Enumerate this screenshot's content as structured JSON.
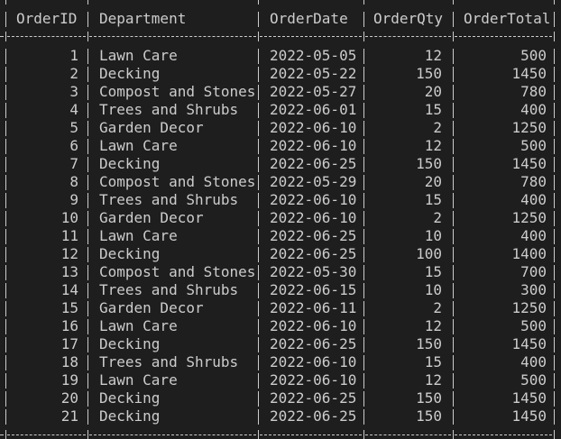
{
  "table": {
    "columns": [
      "OrderID",
      "Department",
      "OrderDate",
      "OrderQty",
      "OrderTotal"
    ],
    "rows": [
      [
        "1",
        "Lawn Care",
        "2022-05-05",
        "12",
        "500"
      ],
      [
        "2",
        "Decking",
        "2022-05-22",
        "150",
        "1450"
      ],
      [
        "3",
        "Compost and Stones",
        "2022-05-27",
        "20",
        "780"
      ],
      [
        "4",
        "Trees and Shrubs",
        "2022-06-01",
        "15",
        "400"
      ],
      [
        "5",
        "Garden Decor",
        "2022-06-10",
        "2",
        "1250"
      ],
      [
        "6",
        "Lawn Care",
        "2022-06-10",
        "12",
        "500"
      ],
      [
        "7",
        "Decking",
        "2022-06-25",
        "150",
        "1450"
      ],
      [
        "8",
        "Compost and Stones",
        "2022-05-29",
        "20",
        "780"
      ],
      [
        "9",
        "Trees and Shrubs",
        "2022-06-10",
        "15",
        "400"
      ],
      [
        "10",
        "Garden Decor",
        "2022-06-10",
        "2",
        "1250"
      ],
      [
        "11",
        "Lawn Care",
        "2022-06-25",
        "10",
        "400"
      ],
      [
        "12",
        "Decking",
        "2022-06-25",
        "100",
        "1400"
      ],
      [
        "13",
        "Compost and Stones",
        "2022-05-30",
        "15",
        "700"
      ],
      [
        "14",
        "Trees and Shrubs",
        "2022-06-15",
        "10",
        "300"
      ],
      [
        "15",
        "Garden Decor",
        "2022-06-11",
        "2",
        "1250"
      ],
      [
        "16",
        "Lawn Care",
        "2022-06-10",
        "12",
        "500"
      ],
      [
        "17",
        "Decking",
        "2022-06-25",
        "150",
        "1450"
      ],
      [
        "18",
        "Trees and Shrubs",
        "2022-06-10",
        "15",
        "400"
      ],
      [
        "19",
        "Lawn Care",
        "2022-06-10",
        "12",
        "500"
      ],
      [
        "20",
        "Decking",
        "2022-06-25",
        "150",
        "1450"
      ],
      [
        "21",
        "Decking",
        "2022-06-25",
        "150",
        "1450"
      ]
    ]
  },
  "colors": {
    "background": "#1e1e1e",
    "text": "#cccccc"
  }
}
